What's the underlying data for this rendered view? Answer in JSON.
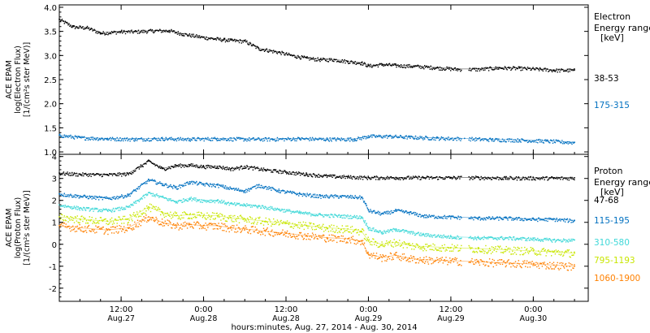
{
  "xlabel": "hours:minutes, Aug. 27, 2014 - Aug. 30, 2014",
  "x_ticks": [
    {
      "t": 12,
      "time": "12:00",
      "date": "Aug.27"
    },
    {
      "t": 24,
      "time": "0:00",
      "date": "Aug.28"
    },
    {
      "t": 36,
      "time": "12:00",
      "date": "Aug.28"
    },
    {
      "t": 48,
      "time": "0:00",
      "date": "Aug.29"
    },
    {
      "t": 60,
      "time": "12:00",
      "date": "Aug.29"
    },
    {
      "t": 72,
      "time": "0:00",
      "date": "Aug.30"
    }
  ],
  "chart_data": [
    {
      "type": "scatter",
      "ylabel_lines": [
        "ACE EPAM",
        "log(Electron Flux)",
        "[1/(cm²s ster MeV)]"
      ],
      "legend_title": [
        "Electron",
        "Energy ranges",
        "[keV]"
      ],
      "xlim": [
        3,
        80
      ],
      "ylim": [
        0.95,
        4.05
      ],
      "yticks": [
        1.0,
        1.5,
        2.0,
        2.5,
        3.0,
        3.5,
        4.0
      ],
      "ytick_labels": [
        "1.0",
        "1.5",
        "2.0",
        "2.5",
        "3.0",
        "3.5",
        "4.0"
      ],
      "series": [
        {
          "name": "38-53",
          "color": "#000000",
          "points": [
            [
              3,
              3.75
            ],
            [
              5,
              3.6
            ],
            [
              7,
              3.58
            ],
            [
              9,
              3.47
            ],
            [
              12,
              3.5
            ],
            [
              14,
              3.5
            ],
            [
              17,
              3.52
            ],
            [
              19,
              3.52
            ],
            [
              21,
              3.45
            ],
            [
              24,
              3.38
            ],
            [
              27,
              3.33
            ],
            [
              28,
              3.32
            ],
            [
              30,
              3.3
            ],
            [
              32,
              3.15
            ],
            [
              35,
              3.07
            ],
            [
              37,
              3.0
            ],
            [
              39,
              2.95
            ],
            [
              41,
              2.92
            ],
            [
              43,
              2.92
            ],
            [
              45,
              2.88
            ],
            [
              47,
              2.85
            ],
            [
              48,
              2.79
            ],
            [
              50,
              2.82
            ],
            [
              52,
              2.8
            ],
            [
              55,
              2.78
            ],
            [
              58,
              2.75
            ],
            [
              61,
              2.72
            ],
            [
              64,
              2.72
            ],
            [
              67,
              2.75
            ],
            [
              70,
              2.74
            ],
            [
              73,
              2.72
            ],
            [
              75,
              2.7
            ],
            [
              78,
              2.7
            ]
          ]
        },
        {
          "name": "175-315",
          "color": "#0070c0",
          "points": [
            [
              3,
              1.35
            ],
            [
              6,
              1.3
            ],
            [
              10,
              1.28
            ],
            [
              14,
              1.27
            ],
            [
              18,
              1.28
            ],
            [
              22,
              1.27
            ],
            [
              26,
              1.28
            ],
            [
              30,
              1.27
            ],
            [
              34,
              1.27
            ],
            [
              38,
              1.28
            ],
            [
              42,
              1.27
            ],
            [
              46,
              1.27
            ],
            [
              48,
              1.33
            ],
            [
              51,
              1.33
            ],
            [
              54,
              1.31
            ],
            [
              58,
              1.29
            ],
            [
              62,
              1.28
            ],
            [
              66,
              1.26
            ],
            [
              70,
              1.25
            ],
            [
              74,
              1.23
            ],
            [
              78,
              1.2
            ]
          ]
        }
      ]
    },
    {
      "type": "scatter",
      "ylabel_lines": [
        "ACE EPAM",
        "log(Proton Flux)",
        "[1/(cm²s ster MeV)]"
      ],
      "legend_title": [
        "Proton",
        "Energy ranges",
        "[keV]"
      ],
      "xlim": [
        3,
        80
      ],
      "ylim": [
        -2.6,
        4.1
      ],
      "yticks": [
        -2,
        -1,
        0,
        1,
        2,
        3,
        4
      ],
      "ytick_labels": [
        "-2",
        "-1",
        "0",
        "1",
        "2",
        "3",
        "4"
      ],
      "series": [
        {
          "name": "47-68",
          "color": "#000000",
          "points": [
            [
              3,
              3.25
            ],
            [
              6,
              3.2
            ],
            [
              10,
              3.18
            ],
            [
              13,
              3.22
            ],
            [
              16,
              3.8
            ],
            [
              18,
              3.45
            ],
            [
              20,
              3.6
            ],
            [
              22,
              3.62
            ],
            [
              24,
              3.55
            ],
            [
              26,
              3.55
            ],
            [
              28,
              3.45
            ],
            [
              30,
              3.55
            ],
            [
              33,
              3.4
            ],
            [
              36,
              3.3
            ],
            [
              39,
              3.2
            ],
            [
              42,
              3.12
            ],
            [
              45,
              3.08
            ],
            [
              48,
              3.05
            ],
            [
              52,
              3.05
            ],
            [
              56,
              3.05
            ],
            [
              60,
              3.05
            ],
            [
              64,
              3.05
            ],
            [
              68,
              3.03
            ],
            [
              72,
              3.03
            ],
            [
              75,
              3.03
            ],
            [
              78,
              3.03
            ]
          ]
        },
        {
          "name": "115-195",
          "color": "#0070c0",
          "points": [
            [
              3,
              2.3
            ],
            [
              6,
              2.2
            ],
            [
              10,
              2.1
            ],
            [
              13,
              2.25
            ],
            [
              16,
              2.95
            ],
            [
              18,
              2.75
            ],
            [
              20,
              2.6
            ],
            [
              22,
              2.85
            ],
            [
              24,
              2.75
            ],
            [
              26,
              2.7
            ],
            [
              28,
              2.55
            ],
            [
              30,
              2.45
            ],
            [
              32,
              2.7
            ],
            [
              35,
              2.45
            ],
            [
              38,
              2.3
            ],
            [
              41,
              2.2
            ],
            [
              44,
              2.2
            ],
            [
              47,
              2.15
            ],
            [
              48,
              1.55
            ],
            [
              50,
              1.4
            ],
            [
              52,
              1.55
            ],
            [
              54,
              1.45
            ],
            [
              56,
              1.3
            ],
            [
              60,
              1.25
            ],
            [
              64,
              1.2
            ],
            [
              68,
              1.2
            ],
            [
              72,
              1.15
            ],
            [
              75,
              1.15
            ],
            [
              78,
              1.08
            ]
          ]
        },
        {
          "name": "310-580",
          "color": "#40d8d8",
          "points": [
            [
              3,
              1.8
            ],
            [
              6,
              1.65
            ],
            [
              10,
              1.55
            ],
            [
              13,
              1.7
            ],
            [
              16,
              2.35
            ],
            [
              18,
              2.15
            ],
            [
              20,
              1.95
            ],
            [
              22,
              2.1
            ],
            [
              24,
              2.0
            ],
            [
              26,
              2.0
            ],
            [
              28,
              1.85
            ],
            [
              30,
              1.8
            ],
            [
              32,
              1.75
            ],
            [
              35,
              1.6
            ],
            [
              38,
              1.45
            ],
            [
              41,
              1.35
            ],
            [
              44,
              1.3
            ],
            [
              47,
              1.25
            ],
            [
              48,
              0.75
            ],
            [
              50,
              0.55
            ],
            [
              52,
              0.7
            ],
            [
              54,
              0.55
            ],
            [
              56,
              0.45
            ],
            [
              60,
              0.35
            ],
            [
              64,
              0.3
            ],
            [
              68,
              0.3
            ],
            [
              72,
              0.25
            ],
            [
              75,
              0.2
            ],
            [
              78,
              0.2
            ]
          ]
        },
        {
          "name": "795-1193",
          "color": "#c8e600",
          "points": [
            [
              3,
              1.25
            ],
            [
              6,
              1.15
            ],
            [
              10,
              1.05
            ],
            [
              13,
              1.15
            ],
            [
              16,
              1.7
            ],
            [
              18,
              1.45
            ],
            [
              20,
              1.3
            ],
            [
              22,
              1.35
            ],
            [
              24,
              1.3
            ],
            [
              26,
              1.3
            ],
            [
              28,
              1.2
            ],
            [
              30,
              1.15
            ],
            [
              33,
              1.05
            ],
            [
              36,
              0.95
            ],
            [
              39,
              0.85
            ],
            [
              42,
              0.75
            ],
            [
              45,
              0.7
            ],
            [
              47,
              0.6
            ],
            [
              48,
              0.15
            ],
            [
              50,
              0.0
            ],
            [
              52,
              0.1
            ],
            [
              54,
              -0.05
            ],
            [
              56,
              -0.1
            ],
            [
              60,
              -0.15
            ],
            [
              64,
              -0.2
            ],
            [
              68,
              -0.25
            ],
            [
              72,
              -0.3
            ],
            [
              75,
              -0.35
            ],
            [
              78,
              -0.4
            ]
          ]
        },
        {
          "name": "1060-1900",
          "color": "#ff8000",
          "points": [
            [
              3,
              0.85
            ],
            [
              6,
              0.75
            ],
            [
              10,
              0.65
            ],
            [
              13,
              0.75
            ],
            [
              16,
              1.25
            ],
            [
              18,
              1.0
            ],
            [
              20,
              0.85
            ],
            [
              22,
              0.9
            ],
            [
              24,
              0.85
            ],
            [
              26,
              0.85
            ],
            [
              28,
              0.75
            ],
            [
              30,
              0.7
            ],
            [
              33,
              0.6
            ],
            [
              36,
              0.5
            ],
            [
              39,
              0.4
            ],
            [
              42,
              0.3
            ],
            [
              45,
              0.25
            ],
            [
              47,
              0.15
            ],
            [
              48,
              -0.45
            ],
            [
              50,
              -0.6
            ],
            [
              52,
              -0.5
            ],
            [
              54,
              -0.65
            ],
            [
              56,
              -0.7
            ],
            [
              60,
              -0.75
            ],
            [
              64,
              -0.8
            ],
            [
              68,
              -0.85
            ],
            [
              72,
              -0.9
            ],
            [
              75,
              -0.95
            ],
            [
              78,
              -1.0
            ]
          ]
        }
      ]
    }
  ]
}
